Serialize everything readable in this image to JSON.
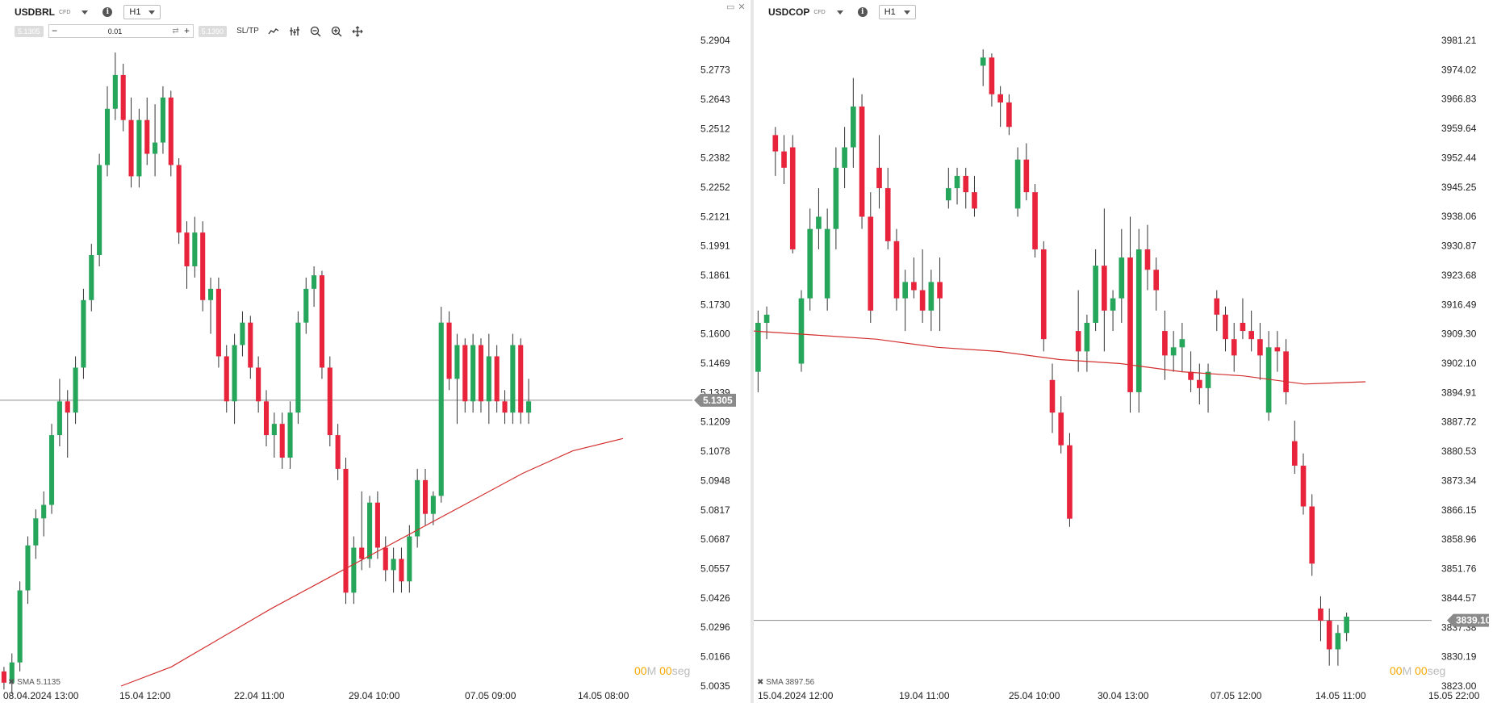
{
  "left": {
    "symbol": "USDBRL",
    "type_badge": "CFD",
    "timeframe": "H1",
    "bid_chip": "5.1305",
    "ask_chip": "5.1390",
    "volume": "0.01",
    "sltp": "SL/TP",
    "timer": {
      "mm": "00",
      "mm_unit": "M",
      "ss": "00",
      "ss_unit": "seg"
    },
    "sma_label": "SMA 5.1135",
    "colors": {
      "up": "#26a65b",
      "down": "#e8243c",
      "sma": "#d32f2f",
      "tag": "#8a8a8a"
    }
  },
  "right": {
    "symbol": "USDCOP",
    "type_badge": "CFD",
    "timeframe": "H1",
    "timer": {
      "mm": "00",
      "mm_unit": "M",
      "ss": "00",
      "ss_unit": "seg"
    },
    "sma_label": "SMA 3897.56",
    "colors": {
      "up": "#26a65b",
      "down": "#e8243c",
      "sma": "#d32f2f",
      "tag": "#8a8a8a"
    }
  },
  "chart_data": [
    {
      "type": "candlestick",
      "title": "USDBRL",
      "yticks": [
        "5.2904",
        "5.2773",
        "5.2643",
        "5.2512",
        "5.2382",
        "5.2252",
        "5.2121",
        "5.1991",
        "5.1861",
        "5.1730",
        "5.1600",
        "5.1469",
        "5.1339",
        "5.1209",
        "5.1078",
        "5.0948",
        "5.0817",
        "5.0687",
        "5.0557",
        "5.0426",
        "5.0296",
        "5.0166",
        "5.0035"
      ],
      "ylim": [
        5.0035,
        5.2904
      ],
      "xticks": [
        "08.04.2024 13:00",
        "15.04 12:00",
        "22.04 11:00",
        "29.04 10:00",
        "07.05 09:00",
        "14.05 08:00"
      ],
      "current_price": 5.1305,
      "current_label": "5.1305",
      "ohlc": [
        [
          5.01,
          5.012,
          5.002,
          5.005
        ],
        [
          5.005,
          5.018,
          5.0,
          5.014
        ],
        [
          5.014,
          5.05,
          5.01,
          5.046
        ],
        [
          5.046,
          5.07,
          5.04,
          5.066
        ],
        [
          5.066,
          5.082,
          5.06,
          5.078
        ],
        [
          5.078,
          5.09,
          5.07,
          5.084
        ],
        [
          5.084,
          5.12,
          5.08,
          5.115
        ],
        [
          5.115,
          5.14,
          5.11,
          5.13
        ],
        [
          5.13,
          5.135,
          5.105,
          5.125
        ],
        [
          5.125,
          5.15,
          5.12,
          5.145
        ],
        [
          5.145,
          5.18,
          5.14,
          5.175
        ],
        [
          5.175,
          5.2,
          5.17,
          5.195
        ],
        [
          5.195,
          5.24,
          5.19,
          5.235
        ],
        [
          5.235,
          5.27,
          5.23,
          5.26
        ],
        [
          5.26,
          5.285,
          5.255,
          5.275
        ],
        [
          5.275,
          5.28,
          5.25,
          5.255
        ],
        [
          5.255,
          5.265,
          5.225,
          5.23
        ],
        [
          5.23,
          5.26,
          5.225,
          5.255
        ],
        [
          5.255,
          5.265,
          5.235,
          5.24
        ],
        [
          5.24,
          5.262,
          5.23,
          5.245
        ],
        [
          5.245,
          5.27,
          5.24,
          5.265
        ],
        [
          5.265,
          5.268,
          5.23,
          5.235
        ],
        [
          5.235,
          5.238,
          5.2,
          5.205
        ],
        [
          5.205,
          5.21,
          5.18,
          5.19
        ],
        [
          5.19,
          5.212,
          5.185,
          5.205
        ],
        [
          5.205,
          5.21,
          5.17,
          5.175
        ],
        [
          5.175,
          5.185,
          5.16,
          5.18
        ],
        [
          5.18,
          5.185,
          5.145,
          5.15
        ],
        [
          5.15,
          5.155,
          5.125,
          5.13
        ],
        [
          5.13,
          5.16,
          5.12,
          5.155
        ],
        [
          5.155,
          5.17,
          5.15,
          5.165
        ],
        [
          5.165,
          5.168,
          5.14,
          5.145
        ],
        [
          5.145,
          5.15,
          5.125,
          5.13
        ],
        [
          5.13,
          5.135,
          5.11,
          5.115
        ],
        [
          5.115,
          5.125,
          5.105,
          5.12
        ],
        [
          5.12,
          5.125,
          5.1,
          5.105
        ],
        [
          5.105,
          5.13,
          5.1,
          5.125
        ],
        [
          5.125,
          5.17,
          5.12,
          5.165
        ],
        [
          5.165,
          5.185,
          5.16,
          5.18
        ],
        [
          5.18,
          5.19,
          5.172,
          5.186
        ],
        [
          5.186,
          5.188,
          5.14,
          5.145
        ],
        [
          5.145,
          5.15,
          5.11,
          5.115
        ],
        [
          5.115,
          5.12,
          5.095,
          5.1
        ],
        [
          5.1,
          5.105,
          5.04,
          5.045
        ],
        [
          5.045,
          5.07,
          5.04,
          5.065
        ],
        [
          5.065,
          5.09,
          5.055,
          5.06
        ],
        [
          5.06,
          5.088,
          5.056,
          5.085
        ],
        [
          5.085,
          5.09,
          5.06,
          5.065
        ],
        [
          5.065,
          5.07,
          5.05,
          5.055
        ],
        [
          5.055,
          5.065,
          5.045,
          5.06
        ],
        [
          5.06,
          5.065,
          5.045,
          5.05
        ],
        [
          5.05,
          5.075,
          5.045,
          5.07
        ],
        [
          5.07,
          5.1,
          5.065,
          5.095
        ],
        [
          5.095,
          5.1,
          5.075,
          5.08
        ],
        [
          5.08,
          5.09,
          5.075,
          5.088
        ],
        [
          5.088,
          5.172,
          5.085,
          5.165
        ],
        [
          5.165,
          5.17,
          5.135,
          5.14
        ],
        [
          5.14,
          5.16,
          5.12,
          5.155
        ],
        [
          5.155,
          5.158,
          5.125,
          5.13
        ],
        [
          5.13,
          5.16,
          5.125,
          5.155
        ],
        [
          5.155,
          5.158,
          5.125,
          5.13
        ],
        [
          5.13,
          5.16,
          5.12,
          5.15
        ],
        [
          5.15,
          5.155,
          5.125,
          5.13
        ],
        [
          5.13,
          5.135,
          5.12,
          5.125
        ],
        [
          5.125,
          5.16,
          5.12,
          5.155
        ],
        [
          5.155,
          5.158,
          5.12,
          5.125
        ],
        [
          5.125,
          5.14,
          5.12,
          5.13
        ]
      ],
      "sma": [
        [
          0,
          5.0035
        ],
        [
          0.1,
          5.012
        ],
        [
          0.2,
          5.025
        ],
        [
          0.3,
          5.038
        ],
        [
          0.4,
          5.05
        ],
        [
          0.5,
          5.062
        ],
        [
          0.6,
          5.074
        ],
        [
          0.7,
          5.086
        ],
        [
          0.8,
          5.098
        ],
        [
          0.9,
          5.108
        ],
        [
          1.0,
          5.1135
        ]
      ]
    },
    {
      "type": "candlestick",
      "title": "USDCOP",
      "yticks": [
        "3981.21",
        "3974.02",
        "3966.83",
        "3959.64",
        "3952.44",
        "3945.25",
        "3938.06",
        "3930.87",
        "3923.68",
        "3916.49",
        "3909.30",
        "3902.10",
        "3894.91",
        "3887.72",
        "3880.53",
        "3873.34",
        "3866.15",
        "3858.96",
        "3851.76",
        "3844.57",
        "3837.38",
        "3830.19",
        "3823.00"
      ],
      "ylim": [
        3823.0,
        3981.21
      ],
      "xticks": [
        "15.04.2024 12:00",
        "19.04 11:00",
        "25.04 10:00",
        "30.04 13:00",
        "07.05 12:00",
        "14.05 11:00",
        "15.05 22:00"
      ],
      "current_price": 3839.1,
      "current_label": "3839.10",
      "ohlc": [
        [
          3900,
          3915,
          3895,
          3912
        ],
        [
          3912,
          3916,
          3908,
          3914
        ],
        [
          3958,
          3960,
          3948,
          3954
        ],
        [
          3954,
          3958,
          3946,
          3950
        ],
        [
          3955,
          3958,
          3929,
          3930
        ],
        [
          3902,
          3920,
          3900,
          3918
        ],
        [
          3918,
          3940,
          3915,
          3935
        ],
        [
          3935,
          3945,
          3930,
          3938
        ],
        [
          3918,
          3940,
          3915,
          3935
        ],
        [
          3935,
          3955,
          3930,
          3950
        ],
        [
          3950,
          3960,
          3945,
          3955
        ],
        [
          3955,
          3972,
          3950,
          3965
        ],
        [
          3965,
          3968,
          3935,
          3938
        ],
        [
          3938,
          3944,
          3912,
          3915
        ],
        [
          3950,
          3958,
          3940,
          3945
        ],
        [
          3945,
          3950,
          3930,
          3932
        ],
        [
          3932,
          3935,
          3915,
          3918
        ],
        [
          3918,
          3925,
          3910,
          3922
        ],
        [
          3922,
          3928,
          3918,
          3920
        ],
        [
          3920,
          3930,
          3912,
          3915
        ],
        [
          3915,
          3925,
          3910,
          3922
        ],
        [
          3922,
          3928,
          3910,
          3918
        ],
        [
          3942,
          3950,
          3940,
          3945
        ],
        [
          3945,
          3950,
          3941,
          3948
        ],
        [
          3948,
          3950,
          3940,
          3944
        ],
        [
          3944,
          3948,
          3938,
          3940
        ],
        [
          3975,
          3979,
          3970,
          3977
        ],
        [
          3977,
          3978,
          3965,
          3968
        ],
        [
          3968,
          3970,
          3960,
          3966
        ],
        [
          3966,
          3968,
          3958,
          3960
        ],
        [
          3940,
          3955,
          3938,
          3952
        ],
        [
          3952,
          3956,
          3942,
          3944
        ],
        [
          3944,
          3946,
          3928,
          3930
        ],
        [
          3930,
          3932,
          3905,
          3908
        ],
        [
          3898,
          3902,
          3885,
          3890
        ],
        [
          3890,
          3894,
          3880,
          3882
        ],
        [
          3882,
          3885,
          3862,
          3864
        ],
        [
          3910,
          3920,
          3900,
          3905
        ],
        [
          3905,
          3914,
          3900,
          3912
        ],
        [
          3912,
          3930,
          3910,
          3926
        ],
        [
          3926,
          3940,
          3905,
          3915
        ],
        [
          3915,
          3920,
          3910,
          3918
        ],
        [
          3918,
          3935,
          3912,
          3928
        ],
        [
          3928,
          3938,
          3890,
          3895
        ],
        [
          3895,
          3935,
          3890,
          3930
        ],
        [
          3930,
          3936,
          3920,
          3925
        ],
        [
          3925,
          3928,
          3915,
          3920
        ],
        [
          3910,
          3915,
          3898,
          3904
        ],
        [
          3904,
          3910,
          3900,
          3906
        ],
        [
          3906,
          3912,
          3900,
          3908
        ],
        [
          3900,
          3905,
          3895,
          3898
        ],
        [
          3898,
          3902,
          3892,
          3896
        ],
        [
          3896,
          3902,
          3890,
          3900
        ],
        [
          3918,
          3920,
          3910,
          3914
        ],
        [
          3914,
          3916,
          3905,
          3908
        ],
        [
          3908,
          3912,
          3900,
          3904
        ],
        [
          3912,
          3918,
          3908,
          3910
        ],
        [
          3910,
          3915,
          3905,
          3908
        ],
        [
          3908,
          3912,
          3898,
          3904
        ],
        [
          3890,
          3910,
          3888,
          3906
        ],
        [
          3906,
          3910,
          3900,
          3905
        ],
        [
          3905,
          3908,
          3892,
          3895
        ],
        [
          3883,
          3888,
          3875,
          3877
        ],
        [
          3877,
          3880,
          3865,
          3867
        ],
        [
          3867,
          3870,
          3850,
          3853
        ],
        [
          3842,
          3845,
          3834,
          3839
        ],
        [
          3839,
          3842,
          3828,
          3832
        ],
        [
          3832,
          3838,
          3828,
          3836
        ],
        [
          3836,
          3841,
          3834,
          3840
        ]
      ],
      "sma": [
        [
          0,
          3910
        ],
        [
          0.1,
          3909
        ],
        [
          0.2,
          3908
        ],
        [
          0.3,
          3906
        ],
        [
          0.4,
          3905
        ],
        [
          0.5,
          3903
        ],
        [
          0.6,
          3902
        ],
        [
          0.7,
          3900
        ],
        [
          0.8,
          3899
        ],
        [
          0.9,
          3897
        ],
        [
          1.0,
          3897.56
        ]
      ]
    }
  ]
}
